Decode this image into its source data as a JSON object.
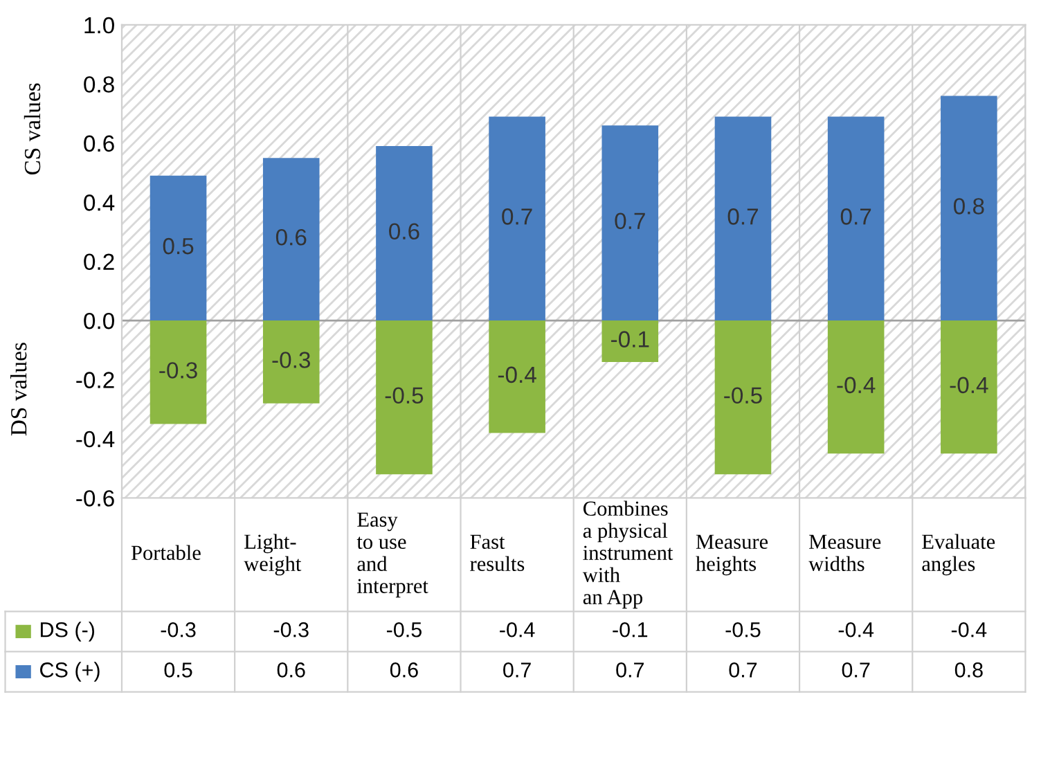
{
  "chart_data": {
    "type": "bar",
    "ylabel": "CS values",
    "annotations": [
      "DS values"
    ],
    "categories": [
      "Portable",
      "Light-\nweight",
      "Easy\nto use\nand\ninterpret",
      "Fast\nresults",
      "Combines\na physical\ninstrument\nwith\nan App",
      "Measure\nheights",
      "Measure\nwidths",
      "Evaluate\nangles"
    ],
    "series": [
      {
        "name": "DS (-)",
        "color": "#8db843",
        "values": [
          -0.35,
          -0.28,
          -0.52,
          -0.38,
          -0.14,
          -0.52,
          -0.45,
          -0.45
        ],
        "value_labels": [
          "-0.3",
          "-0.3",
          "-0.5",
          "-0.4",
          "-0.1",
          "-0.5",
          "-0.4",
          "-0.4"
        ]
      },
      {
        "name": "CS (+)",
        "color": "#4a7fc1",
        "values": [
          0.49,
          0.55,
          0.59,
          0.69,
          0.66,
          0.69,
          0.69,
          0.76
        ],
        "value_labels": [
          "0.5",
          "0.6",
          "0.6",
          "0.7",
          "0.7",
          "0.7",
          "0.7",
          "0.8"
        ]
      }
    ],
    "ylim": [
      -0.6,
      1.0
    ],
    "yticks": [
      -0.6,
      -0.4,
      -0.2,
      {
        "value": 0,
        "label": "0.0"
      },
      0.2,
      0.4,
      0.6,
      0.8,
      {
        "value": 1,
        "label": "1.0"
      }
    ],
    "stacked": true,
    "ref_lines": [
      {
        "axis": "y",
        "value": 0.0,
        "color": "#a0a0a0"
      }
    ],
    "grid": false,
    "legend": "bottom"
  }
}
